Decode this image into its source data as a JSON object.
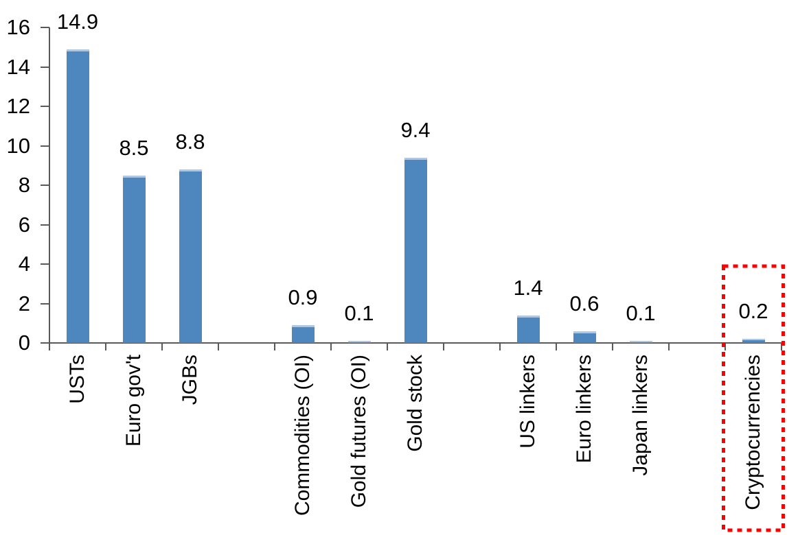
{
  "chart_data": {
    "type": "bar",
    "title": "",
    "xlabel": "",
    "ylabel": "",
    "categories": [
      "USTs",
      "Euro gov't",
      "JGBs",
      "Commodities (OI)",
      "Gold futures (OI)",
      "Gold stock",
      "US linkers",
      "Euro linkers",
      "Japan linkers",
      "Cryptocurrencies"
    ],
    "values": [
      14.9,
      8.5,
      8.8,
      0.9,
      0.1,
      9.4,
      1.4,
      0.6,
      0.1,
      0.2
    ],
    "value_labels": [
      "14.9",
      "8.5",
      "8.8",
      "0.9",
      "0.1",
      "9.4",
      "1.4",
      "0.6",
      "0.1",
      "0.2"
    ],
    "slot_positions": [
      0,
      1,
      2,
      4,
      5,
      6,
      8,
      9,
      10,
      12
    ],
    "total_slots": 13,
    "ylim": [
      0,
      16
    ],
    "yticks": [
      "0",
      "2",
      "4",
      "6",
      "8",
      "10",
      "12",
      "14",
      "16"
    ],
    "grid": false,
    "legend": false,
    "data_labels_shown": true,
    "bar_color": "#4E86BE",
    "bar_top_edge_color": "#AFC7E2",
    "axis_color": "#595959",
    "text_color": "#000000",
    "highlight": {
      "category": "Cryptocurrencies",
      "style": "red-dotted-rectangle",
      "box_color": "#FF0000"
    }
  }
}
